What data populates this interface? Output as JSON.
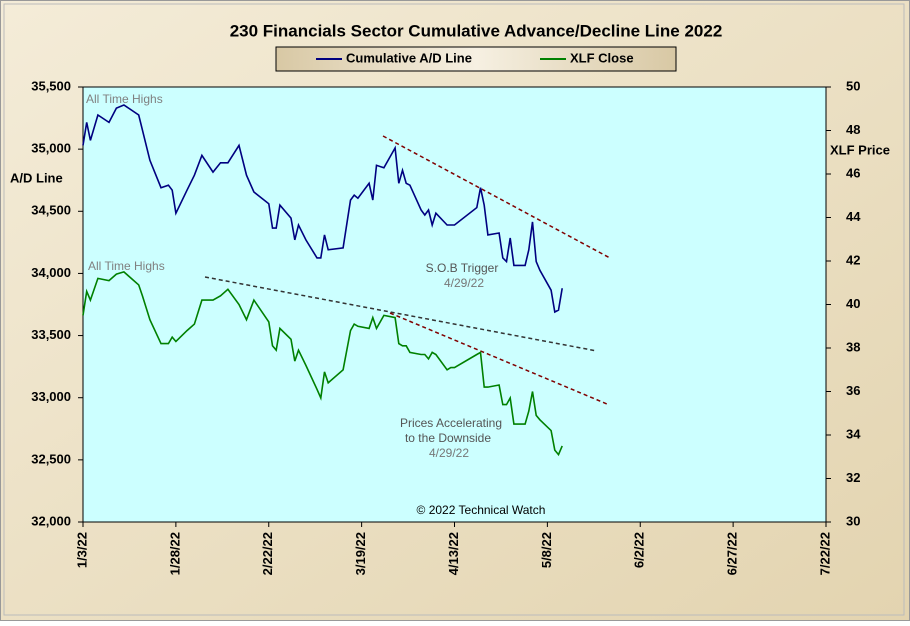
{
  "chart_data": {
    "type": "line",
    "title": "230 Financials  Sector Cumulative  Advance/Decline  Line 2022",
    "y_label": "A/D Line",
    "y2_label": "XLF Price",
    "x": [
      "1/3/22",
      "1/4/22",
      "1/5/22",
      "1/7/22",
      "1/10/22",
      "1/12/22",
      "1/14/22",
      "1/18/22",
      "1/19/22",
      "1/21/22",
      "1/24/22",
      "1/26/22",
      "1/27/22",
      "1/28/22",
      "1/31/22",
      "2/2/22",
      "2/4/22",
      "2/7/22",
      "2/9/22",
      "2/11/22",
      "2/14/22",
      "2/16/22",
      "2/18/22",
      "2/22/22",
      "2/23/22",
      "2/24/22",
      "2/25/22",
      "2/28/22",
      "3/1/22",
      "3/2/22",
      "3/4/22",
      "3/7/22",
      "3/8/22",
      "3/9/22",
      "3/10/22",
      "3/14/22",
      "3/16/22",
      "3/17/22",
      "3/18/22",
      "3/21/22",
      "3/22/22",
      "3/23/22",
      "3/25/22",
      "3/28/22",
      "3/29/22",
      "3/30/22",
      "3/31/22",
      "4/1/22",
      "4/4/22",
      "4/5/22",
      "4/6/22",
      "4/7/22",
      "4/8/22",
      "4/11/22",
      "4/12/22",
      "4/13/22",
      "4/19/22",
      "4/20/22",
      "4/21/22",
      "4/22/22",
      "4/25/22",
      "4/26/22",
      "4/27/22",
      "4/28/22",
      "4/29/22",
      "5/2/22",
      "5/3/22",
      "5/4/22",
      "5/5/22",
      "5/6/22",
      "5/9/22",
      "5/10/22",
      "5/11/22",
      "5/12/22"
    ],
    "series": [
      {
        "name": "Cumulative A/D Line",
        "color": "#000080",
        "axis": "y",
        "values": [
          35030,
          35215,
          35070,
          35275,
          35215,
          35330,
          35355,
          35275,
          35155,
          34910,
          34690,
          34710,
          34670,
          34485,
          34670,
          34790,
          34950,
          34815,
          34890,
          34890,
          35030,
          34790,
          34655,
          34560,
          34365,
          34365,
          34550,
          34445,
          34270,
          34390,
          34270,
          34125,
          34125,
          34310,
          34190,
          34205,
          34590,
          34630,
          34605,
          34725,
          34590,
          34870,
          34850,
          35010,
          34725,
          34830,
          34725,
          34710,
          34510,
          34470,
          34510,
          34390,
          34485,
          34390,
          34390,
          34390,
          34530,
          34690,
          34550,
          34310,
          34325,
          34125,
          34095,
          34285,
          34065,
          34065,
          34190,
          34415,
          34095,
          34025,
          33865,
          33690,
          33705,
          33880
        ]
      },
      {
        "name": "XLF Close",
        "color": "#008000",
        "axis": "y2",
        "values": [
          39.5,
          40.6,
          40.2,
          41.2,
          41.1,
          41.4,
          41.5,
          40.9,
          40.4,
          39.3,
          38.2,
          38.2,
          38.5,
          38.3,
          38.8,
          39.1,
          40.2,
          40.2,
          40.4,
          40.7,
          40.0,
          39.3,
          40.2,
          39.2,
          38.1,
          37.9,
          38.9,
          38.4,
          37.4,
          37.9,
          37.2,
          36.1,
          35.7,
          36.9,
          36.4,
          37.0,
          38.8,
          39.1,
          39.0,
          38.9,
          39.4,
          38.9,
          39.5,
          39.4,
          38.2,
          38.1,
          38.1,
          37.8,
          37.7,
          37.7,
          37.5,
          37.8,
          37.7,
          37.0,
          37.1,
          37.1,
          37.7,
          37.8,
          36.2,
          36.2,
          36.3,
          35.4,
          35.4,
          35.7,
          34.5,
          34.5,
          35.1,
          36.0,
          34.9,
          34.7,
          34.2,
          33.3,
          33.1,
          33.5
        ]
      }
    ],
    "xlim": [
      "1/3/22",
      "7/22/22"
    ],
    "xticks": [
      "1/3/22",
      "1/28/22",
      "2/22/22",
      "3/19/22",
      "4/13/22",
      "5/8/22",
      "6/2/22",
      "6/27/22",
      "7/22/22"
    ],
    "ylim": [
      32000,
      35500
    ],
    "yticks": [
      {
        "value": 32000,
        "label": "32,000"
      },
      {
        "value": 32500,
        "label": "32,500"
      },
      {
        "value": 33000,
        "label": "33,000"
      },
      {
        "value": 33500,
        "label": "33,500"
      },
      {
        "value": 34000,
        "label": "34,000"
      },
      {
        "value": 34500,
        "label": "34,500"
      },
      {
        "value": 35000,
        "label": "35,000"
      },
      {
        "value": 35500,
        "label": "35,500"
      }
    ],
    "y2lim": [
      30,
      50
    ],
    "y2ticks": [
      30,
      32,
      34,
      36,
      38,
      40,
      42,
      44,
      46,
      48,
      50
    ],
    "annotations": [
      "All Time Highs",
      "All Time Highs",
      "S.O.B  Trigger",
      "4/29/22",
      "Prices Accelerating",
      "to the Downside",
      "4/29/22",
      "© 2022 Technical Watch"
    ]
  }
}
